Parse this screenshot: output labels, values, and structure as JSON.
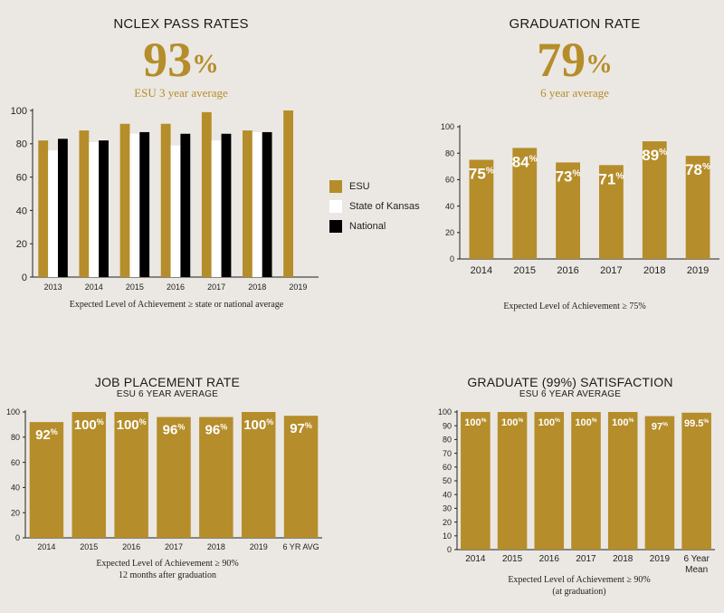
{
  "colors": {
    "gold": "#b58d2a",
    "white": "#ffffff",
    "black": "#000000",
    "axis": "#222222"
  },
  "nclex": {
    "title": "NCLEX PASS RATES",
    "big_number": "93",
    "big_pct": "%",
    "subtitle": "ESU 3 year average",
    "note": "Expected Level of Achievement ≥ state or national average",
    "legend": [
      "ESU",
      "State of Kansas",
      "National"
    ]
  },
  "graduation": {
    "title": "GRADUATION RATE",
    "big_number": "79",
    "big_pct": "%",
    "subtitle": "6 year average",
    "note": "Expected Level of Achievement  ≥ 75%"
  },
  "job": {
    "title": "JOB PLACEMENT RATE",
    "subtitle": "ESU 6 YEAR AVERAGE",
    "note_line1": "Expected Level of Achievement ≥ 90%",
    "note_line2": "12 months after graduation"
  },
  "satisfaction": {
    "title": "GRADUATE (99%) SATISFACTION",
    "subtitle": "ESU 6 YEAR AVERAGE",
    "note_line1": "Expected Level of Achievement ≥ 90%",
    "note_line2": "(at graduation)"
  },
  "chart_data": [
    {
      "id": "nclex",
      "type": "bar",
      "title": "NCLEX PASS RATES",
      "categories": [
        "2013",
        "2014",
        "2015",
        "2016",
        "2017",
        "2018",
        "2019"
      ],
      "series": [
        {
          "name": "ESU",
          "color": "#b58d2a",
          "values": [
            82,
            88,
            92,
            92,
            99,
            88,
            100
          ]
        },
        {
          "name": "State of Kansas",
          "color": "#ffffff",
          "values": [
            76,
            81,
            86,
            79,
            82,
            87,
            null
          ]
        },
        {
          "name": "National",
          "color": "#000000",
          "values": [
            83,
            82,
            87,
            86,
            86,
            87,
            null
          ]
        }
      ],
      "yticks": [
        0,
        20,
        40,
        60,
        80,
        100
      ],
      "ylim": [
        0,
        100
      ],
      "legend_position": "right"
    },
    {
      "id": "graduation",
      "type": "bar",
      "title": "GRADUATION RATE",
      "categories": [
        "2014",
        "2015",
        "2016",
        "2017",
        "2018",
        "2019"
      ],
      "values": [
        75,
        84,
        73,
        71,
        89,
        78
      ],
      "labels": [
        "75",
        "84",
        "73",
        "71",
        "89",
        "78"
      ],
      "yticks": [
        0,
        20,
        40,
        60,
        80,
        100
      ],
      "ylim": [
        0,
        100
      ]
    },
    {
      "id": "job",
      "type": "bar",
      "title": "JOB PLACEMENT RATE",
      "categories": [
        "2014",
        "2015",
        "2016",
        "2017",
        "2018",
        "2019",
        "6 YR AVG"
      ],
      "values": [
        92,
        100,
        100,
        96,
        96,
        100,
        97
      ],
      "labels": [
        "92",
        "100",
        "100",
        "96",
        "96",
        "100",
        "97"
      ],
      "yticks": [
        0,
        20,
        40,
        60,
        80,
        100
      ],
      "ylim": [
        0,
        100
      ]
    },
    {
      "id": "satisfaction",
      "type": "bar",
      "title": "GRADUATE (99%) SATISFACTION",
      "categories": [
        "2014",
        "2015",
        "2016",
        "2017",
        "2018",
        "2019",
        "6 Year Mean"
      ],
      "values": [
        100,
        100,
        100,
        100,
        100,
        97,
        99.5
      ],
      "labels": [
        "100",
        "100",
        "100",
        "100",
        "100",
        "97",
        "99.5"
      ],
      "yticks": [
        0,
        10,
        20,
        30,
        40,
        50,
        60,
        70,
        80,
        90,
        100
      ],
      "ylim": [
        0,
        100
      ]
    }
  ]
}
